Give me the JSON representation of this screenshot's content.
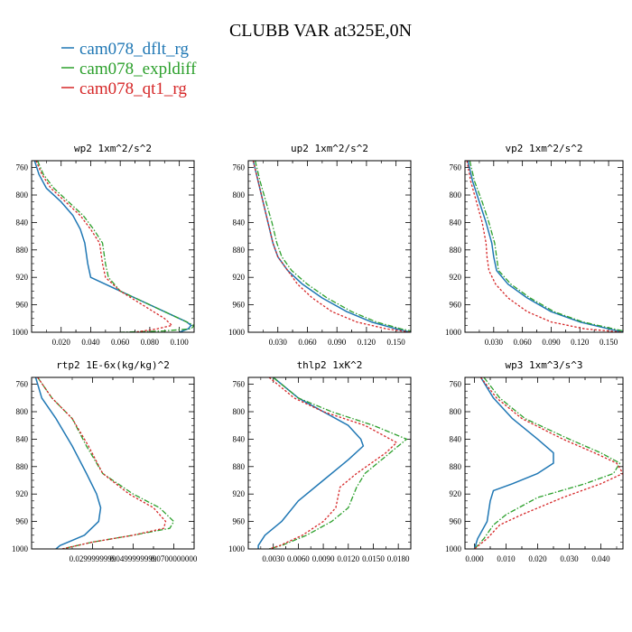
{
  "title": "CLUBB VAR at325E,0N",
  "legend": [
    {
      "label": "cam078_dflt_rg",
      "color": "#1f77b4"
    },
    {
      "label": "cam078_expldiff",
      "color": "#2ca02c"
    },
    {
      "label": "cam078_qt1_rg",
      "color": "#d62728"
    }
  ],
  "chart_data": [
    {
      "type": "line",
      "title": "wp2  1xm^2/s^2",
      "ylim": [
        1000,
        750
      ],
      "xlim": [
        0.0,
        0.11
      ],
      "yticks": [
        760,
        800,
        840,
        880,
        920,
        960,
        1000
      ],
      "xticks": [
        0.02,
        0.04,
        0.06,
        0.08,
        0.1
      ],
      "xticklabels": [
        "0.020",
        "0.040",
        "0.060",
        "0.080",
        "0.100"
      ],
      "series": [
        {
          "name": "cam078_dflt_rg",
          "x": [
            0.002,
            0.005,
            0.01,
            0.02,
            0.028,
            0.033,
            0.036,
            0.038,
            0.04,
            0.05,
            0.07,
            0.09,
            0.105,
            0.108,
            0.106,
            0.1
          ],
          "y": [
            750,
            770,
            790,
            810,
            830,
            850,
            870,
            900,
            920,
            930,
            950,
            970,
            985,
            990,
            995,
            1000
          ]
        },
        {
          "name": "cam078_expldiff",
          "x": [
            0.004,
            0.008,
            0.015,
            0.025,
            0.035,
            0.042,
            0.048,
            0.05,
            0.052,
            0.06,
            0.08,
            0.1,
            0.11,
            0.108,
            0.09,
            0.06
          ],
          "y": [
            750,
            770,
            790,
            810,
            830,
            850,
            870,
            900,
            920,
            940,
            960,
            980,
            990,
            995,
            998,
            1000
          ]
        },
        {
          "name": "cam078_qt1_rg",
          "x": [
            0.003,
            0.007,
            0.013,
            0.023,
            0.033,
            0.04,
            0.046,
            0.048,
            0.05,
            0.06,
            0.075,
            0.09,
            0.095,
            0.085,
            0.07
          ],
          "y": [
            750,
            770,
            790,
            810,
            830,
            850,
            870,
            900,
            920,
            940,
            960,
            980,
            990,
            995,
            1000
          ]
        }
      ]
    },
    {
      "type": "line",
      "title": "up2  1xm^2/s^2",
      "ylim": [
        1000,
        750
      ],
      "xlim": [
        0.0,
        0.165
      ],
      "yticks": [
        760,
        800,
        840,
        880,
        920,
        960,
        1000
      ],
      "xticks": [
        0.03,
        0.06,
        0.09,
        0.12,
        0.15
      ],
      "xticklabels": [
        "0.030",
        "0.060",
        "0.090",
        "0.120",
        "0.150"
      ],
      "series": [
        {
          "name": "cam078_dflt_rg",
          "x": [
            0.005,
            0.01,
            0.015,
            0.02,
            0.025,
            0.03,
            0.04,
            0.055,
            0.075,
            0.1,
            0.125,
            0.15,
            0.165
          ],
          "y": [
            750,
            780,
            810,
            840,
            870,
            890,
            910,
            930,
            950,
            970,
            985,
            995,
            1000
          ]
        },
        {
          "name": "cam078_expldiff",
          "x": [
            0.007,
            0.012,
            0.018,
            0.024,
            0.029,
            0.034,
            0.044,
            0.06,
            0.08,
            0.105,
            0.13,
            0.155,
            0.165
          ],
          "y": [
            750,
            780,
            810,
            840,
            870,
            890,
            910,
            930,
            950,
            970,
            985,
            995,
            998
          ]
        },
        {
          "name": "cam078_qt1_rg",
          "x": [
            0.005,
            0.01,
            0.015,
            0.02,
            0.025,
            0.03,
            0.04,
            0.05,
            0.065,
            0.085,
            0.11,
            0.14,
            0.165
          ],
          "y": [
            750,
            780,
            810,
            840,
            870,
            890,
            910,
            930,
            950,
            970,
            985,
            995,
            1000
          ]
        }
      ]
    },
    {
      "type": "line",
      "title": "vp2  1xm^2/s^2",
      "ylim": [
        1000,
        750
      ],
      "xlim": [
        0.0,
        0.165
      ],
      "yticks": [
        760,
        800,
        840,
        880,
        920,
        960,
        1000
      ],
      "xticks": [
        0.03,
        0.06,
        0.09,
        0.12,
        0.15
      ],
      "xticklabels": [
        "0.030",
        "0.060",
        "0.090",
        "0.120",
        "0.150"
      ],
      "series": [
        {
          "name": "cam078_dflt_rg",
          "x": [
            0.003,
            0.008,
            0.015,
            0.022,
            0.028,
            0.03,
            0.033,
            0.045,
            0.065,
            0.09,
            0.12,
            0.15,
            0.165
          ],
          "y": [
            750,
            780,
            810,
            840,
            870,
            890,
            910,
            930,
            950,
            970,
            985,
            995,
            1000
          ]
        },
        {
          "name": "cam078_expldiff",
          "x": [
            0.005,
            0.01,
            0.018,
            0.025,
            0.031,
            0.033,
            0.035,
            0.048,
            0.068,
            0.093,
            0.123,
            0.155,
            0.165
          ],
          "y": [
            750,
            780,
            810,
            840,
            870,
            890,
            910,
            930,
            950,
            970,
            985,
            995,
            998
          ]
        },
        {
          "name": "cam078_qt1_rg",
          "x": [
            0.002,
            0.006,
            0.012,
            0.018,
            0.022,
            0.023,
            0.025,
            0.032,
            0.045,
            0.065,
            0.09,
            0.125,
            0.165
          ],
          "y": [
            750,
            780,
            810,
            840,
            870,
            890,
            910,
            930,
            950,
            970,
            985,
            995,
            1000
          ]
        }
      ]
    },
    {
      "type": "line",
      "title": "rtp2  1E-6x(kg/kg)^2",
      "ylim": [
        1000,
        750
      ],
      "xlim": [
        0.0,
        0.08
      ],
      "yticks": [
        760,
        800,
        840,
        880,
        920,
        960,
        1000
      ],
      "xticks": [
        0.03,
        0.05,
        0.07
      ],
      "xticklabels": [
        "0.0299999999",
        "0.0499999999",
        "0.0700000000"
      ],
      "series": [
        {
          "name": "cam078_dflt_rg",
          "x": [
            0.002,
            0.005,
            0.012,
            0.02,
            0.027,
            0.032,
            0.034,
            0.033,
            0.026,
            0.018,
            0.014,
            0.012
          ],
          "y": [
            750,
            780,
            810,
            850,
            890,
            920,
            940,
            960,
            980,
            990,
            995,
            1000
          ]
        },
        {
          "name": "cam078_expldiff",
          "x": [
            0.003,
            0.01,
            0.02,
            0.027,
            0.035,
            0.05,
            0.063,
            0.07,
            0.068,
            0.05,
            0.03,
            0.015
          ],
          "y": [
            750,
            780,
            810,
            850,
            890,
            920,
            940,
            960,
            970,
            980,
            990,
            1000
          ]
        },
        {
          "name": "cam078_qt1_rg",
          "x": [
            0.003,
            0.01,
            0.02,
            0.028,
            0.035,
            0.048,
            0.06,
            0.066,
            0.065,
            0.05,
            0.03,
            0.015
          ],
          "y": [
            750,
            780,
            810,
            850,
            890,
            920,
            940,
            960,
            970,
            980,
            990,
            1000
          ]
        }
      ]
    },
    {
      "type": "line",
      "title": "thlp2  1xK^2",
      "ylim": [
        1000,
        750
      ],
      "xlim": [
        0.0,
        0.0195
      ],
      "yticks": [
        760,
        800,
        840,
        880,
        920,
        960,
        1000
      ],
      "xticks": [
        0.003,
        0.006,
        0.009,
        0.012,
        0.015,
        0.018
      ],
      "xticklabels": [
        "0.0030",
        "0.0060",
        "0.0090",
        "0.0120",
        "0.0150",
        "0.0180"
      ],
      "series": [
        {
          "name": "cam078_dflt_rg",
          "x": [
            0.003,
            0.006,
            0.009,
            0.012,
            0.0135,
            0.0138,
            0.012,
            0.009,
            0.006,
            0.004,
            0.002,
            0.0012,
            0.0012
          ],
          "y": [
            750,
            780,
            800,
            820,
            840,
            850,
            870,
            900,
            930,
            960,
            980,
            995,
            1000
          ]
        },
        {
          "name": "cam078_expldiff",
          "x": [
            0.003,
            0.006,
            0.01,
            0.015,
            0.019,
            0.017,
            0.014,
            0.013,
            0.012,
            0.01,
            0.007,
            0.004,
            0.0025
          ],
          "y": [
            750,
            780,
            800,
            820,
            840,
            860,
            890,
            910,
            940,
            960,
            980,
            995,
            1000
          ]
        },
        {
          "name": "cam078_qt1_rg",
          "x": [
            0.0025,
            0.0055,
            0.009,
            0.014,
            0.0178,
            0.0165,
            0.013,
            0.011,
            0.0105,
            0.009,
            0.0065,
            0.0038,
            0.0025
          ],
          "y": [
            750,
            780,
            800,
            820,
            845,
            860,
            890,
            910,
            940,
            960,
            980,
            995,
            1000
          ]
        }
      ]
    },
    {
      "type": "line",
      "title": "wp3  1xm^3/s^3",
      "ylim": [
        1000,
        750
      ],
      "xlim": [
        -0.003,
        0.047
      ],
      "yticks": [
        760,
        800,
        840,
        880,
        920,
        960,
        1000
      ],
      "xticks": [
        0.0,
        0.01,
        0.02,
        0.03,
        0.04
      ],
      "xticklabels": [
        "0.000",
        "0.010",
        "0.020",
        "0.030",
        "0.040"
      ],
      "series": [
        {
          "name": "cam078_dflt_rg",
          "x": [
            0.002,
            0.006,
            0.012,
            0.02,
            0.025,
            0.025,
            0.02,
            0.012,
            0.006,
            0.005,
            0.004,
            0.001,
            0.0
          ],
          "y": [
            750,
            780,
            810,
            840,
            860,
            875,
            890,
            905,
            915,
            930,
            960,
            985,
            1000
          ]
        },
        {
          "name": "cam078_expldiff",
          "x": [
            0.003,
            0.008,
            0.016,
            0.03,
            0.04,
            0.046,
            0.044,
            0.035,
            0.02,
            0.01,
            0.006,
            0.003,
            0.0
          ],
          "y": [
            750,
            780,
            810,
            840,
            860,
            875,
            890,
            905,
            925,
            950,
            965,
            985,
            1000
          ]
        },
        {
          "name": "cam078_qt1_rg",
          "x": [
            0.002,
            0.007,
            0.015,
            0.028,
            0.038,
            0.045,
            0.047,
            0.04,
            0.028,
            0.015,
            0.008,
            0.004,
            0.0
          ],
          "y": [
            750,
            780,
            810,
            840,
            860,
            875,
            890,
            905,
            925,
            950,
            965,
            985,
            1000
          ]
        }
      ]
    }
  ]
}
